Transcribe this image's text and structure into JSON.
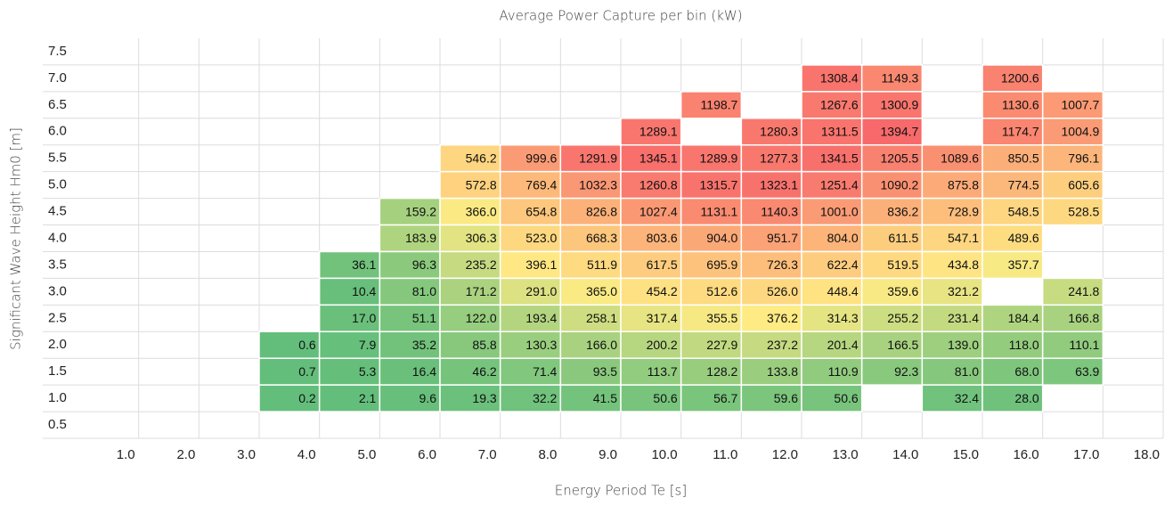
{
  "chart_data": {
    "type": "heatmap",
    "title": "Average Power Capture per bin (kW)",
    "x_label": "Energy Period Te [s]",
    "y_label": "Significant Wave Height Hm0 [m]",
    "x": [
      1,
      2,
      3,
      4,
      5,
      6,
      7,
      8,
      9,
      10,
      11,
      12,
      13,
      14,
      15,
      16,
      17
    ],
    "y": [
      7.0,
      6.5,
      6.0,
      5.5,
      5.0,
      4.5,
      4.0,
      3.5,
      3.0,
      2.5,
      2.0,
      1.5,
      1.0
    ],
    "values": [
      [
        null,
        null,
        null,
        null,
        null,
        null,
        null,
        null,
        null,
        null,
        null,
        null,
        1308.4,
        1149.3,
        null,
        1200.6,
        null
      ],
      [
        null,
        null,
        null,
        null,
        null,
        null,
        null,
        null,
        null,
        null,
        1198.7,
        null,
        1267.6,
        1300.9,
        null,
        1130.6,
        1007.7
      ],
      [
        null,
        null,
        null,
        null,
        null,
        null,
        null,
        null,
        null,
        1289.1,
        null,
        1280.3,
        1311.5,
        1394.7,
        null,
        1174.7,
        1004.9
      ],
      [
        null,
        null,
        null,
        null,
        null,
        null,
        546.2,
        999.6,
        1291.9,
        1345.1,
        1289.9,
        1277.3,
        1341.5,
        1205.5,
        1089.6,
        850.5,
        796.1
      ],
      [
        null,
        null,
        null,
        null,
        null,
        null,
        572.8,
        769.4,
        1032.3,
        1260.8,
        1315.7,
        1323.1,
        1251.4,
        1090.2,
        875.8,
        774.5,
        605.6
      ],
      [
        null,
        null,
        null,
        null,
        null,
        159.2,
        366.0,
        654.8,
        826.8,
        1027.4,
        1131.1,
        1140.3,
        1001.0,
        836.2,
        728.9,
        548.5,
        528.5
      ],
      [
        null,
        null,
        null,
        null,
        null,
        183.9,
        306.3,
        523.0,
        668.3,
        803.6,
        904.0,
        951.7,
        804.0,
        611.5,
        547.1,
        489.6,
        null
      ],
      [
        null,
        null,
        null,
        null,
        36.1,
        96.3,
        235.2,
        396.1,
        511.9,
        617.5,
        695.9,
        726.3,
        622.4,
        519.5,
        434.8,
        357.7,
        null
      ],
      [
        null,
        null,
        null,
        null,
        10.4,
        81.0,
        171.2,
        291.0,
        365.0,
        454.2,
        512.6,
        526.0,
        448.4,
        359.6,
        321.2,
        null,
        241.8
      ],
      [
        null,
        null,
        null,
        null,
        17.0,
        51.1,
        122.0,
        193.4,
        258.1,
        317.4,
        355.5,
        376.2,
        314.3,
        255.2,
        231.4,
        184.4,
        166.8
      ],
      [
        null,
        null,
        null,
        0.6,
        7.9,
        35.2,
        85.8,
        130.3,
        166.0,
        200.2,
        227.9,
        237.2,
        201.4,
        166.5,
        139.0,
        118.0,
        110.1
      ],
      [
        null,
        null,
        null,
        0.7,
        5.3,
        16.4,
        46.2,
        71.4,
        93.5,
        113.7,
        128.2,
        133.8,
        110.9,
        92.3,
        81.0,
        68.0,
        63.9
      ],
      [
        null,
        null,
        null,
        0.2,
        2.1,
        9.6,
        19.3,
        32.2,
        41.5,
        50.6,
        56.7,
        59.6,
        50.6,
        null,
        32.4,
        28.0,
        null
      ]
    ],
    "value_labels": [
      [
        null,
        null,
        null,
        null,
        null,
        null,
        null,
        null,
        null,
        null,
        null,
        null,
        "1308.4",
        "1149.3",
        null,
        "1200.6",
        null
      ],
      [
        null,
        null,
        null,
        null,
        null,
        null,
        null,
        null,
        null,
        null,
        "1198.7",
        null,
        "1267.6",
        "1300.9",
        null,
        "1130.6",
        "1007.7"
      ],
      [
        null,
        null,
        null,
        null,
        null,
        null,
        null,
        null,
        null,
        "1289.1",
        null,
        "1280.3",
        "1311.5",
        "1394.7",
        null,
        "1174.7",
        "1004.9"
      ],
      [
        null,
        null,
        null,
        null,
        null,
        null,
        "546.2",
        "999.6",
        "1291.9",
        "1345.1",
        "1289.9",
        "1277.3",
        "1341.5",
        "1205.5",
        "1089.6",
        "850.5",
        "796.1"
      ],
      [
        null,
        null,
        null,
        null,
        null,
        null,
        "572.8",
        "769.4",
        "1032.3",
        "1260.8",
        "1315.7",
        "1323.1",
        "1251.4",
        "1090.2",
        "875.8",
        "774.5",
        "605.6"
      ],
      [
        null,
        null,
        null,
        null,
        null,
        "159.2",
        "366.0",
        "654.8",
        "826.8",
        "1027.4",
        "1131.1",
        "1140.3",
        "1001.0",
        "836.2",
        "728.9",
        "548.5",
        "528.5"
      ],
      [
        null,
        null,
        null,
        null,
        null,
        "183.9",
        "306.3",
        "523.0",
        "668.3",
        "803.6",
        "904.0",
        "951.7",
        "804.0",
        "611.5",
        "547.1",
        "489.6",
        null
      ],
      [
        null,
        null,
        null,
        null,
        "36.1",
        "96.3",
        "235.2",
        "396.1",
        "511.9",
        "617.5",
        "695.9",
        "726.3",
        "622.4",
        "519.5",
        "434.8",
        "357.7",
        null
      ],
      [
        null,
        null,
        null,
        null,
        "10.4",
        "81.0",
        "171.2",
        "291.0",
        "365.0",
        "454.2",
        "512.6",
        "526.0",
        "448.4",
        "359.6",
        "321.2",
        null,
        "241.8"
      ],
      [
        null,
        null,
        null,
        null,
        "17.0",
        "51.1",
        "122.0",
        "193.4",
        "258.1",
        "317.4",
        "355.5",
        "376.2",
        "314.3",
        "255.2",
        "231.4",
        "184.4",
        "166.8"
      ],
      [
        null,
        null,
        null,
        "0.6",
        "7.9",
        "35.2",
        "85.8",
        "130.3",
        "166.0",
        "200.2",
        "227.9",
        "237.2",
        "201.4",
        "166.5",
        "139.0",
        "118.0",
        "110.1"
      ],
      [
        null,
        null,
        null,
        "0.7",
        "5.3",
        "16.4",
        "46.2",
        "71.4",
        "93.5",
        "113.7",
        "128.2",
        "133.8",
        "110.9",
        "92.3",
        "81.0",
        "68.0",
        "63.9"
      ],
      [
        null,
        null,
        null,
        "0.2",
        "2.1",
        "9.6",
        "19.3",
        "32.2",
        "41.5",
        "50.6",
        "56.7",
        "59.6",
        "50.6",
        null,
        "32.4",
        "28.0",
        null
      ]
    ],
    "colorscale": [
      "#63be7b",
      "#ffeb84",
      "#f8696b"
    ],
    "xlim": [
      0,
      18
    ],
    "ylim": [
      0.25,
      7.75
    ],
    "xticks": [
      {
        "value": 1,
        "label": "1.0"
      },
      {
        "value": 2,
        "label": "2.0"
      },
      {
        "value": 3,
        "label": "3.0"
      },
      {
        "value": 4,
        "label": "4.0"
      },
      {
        "value": 5,
        "label": "5.0"
      },
      {
        "value": 6,
        "label": "6.0"
      },
      {
        "value": 7,
        "label": "7.0"
      },
      {
        "value": 8,
        "label": "8.0"
      },
      {
        "value": 9,
        "label": "9.0"
      },
      {
        "value": 10,
        "label": "10.0"
      },
      {
        "value": 11,
        "label": "11.0"
      },
      {
        "value": 12,
        "label": "12.0"
      },
      {
        "value": 13,
        "label": "13.0"
      },
      {
        "value": 14,
        "label": "14.0"
      },
      {
        "value": 15,
        "label": "15.0"
      },
      {
        "value": 16,
        "label": "16.0"
      },
      {
        "value": 17,
        "label": "17.0"
      },
      {
        "value": 18,
        "label": "18.0"
      }
    ],
    "yticks": [
      {
        "value": 7.5,
        "label": "7.5"
      },
      {
        "value": 7,
        "label": "7.0"
      },
      {
        "value": 6.5,
        "label": "6.5"
      },
      {
        "value": 6,
        "label": "6.0"
      },
      {
        "value": 5.5,
        "label": "5.5"
      },
      {
        "value": 5,
        "label": "5.0"
      },
      {
        "value": 4.5,
        "label": "4.5"
      },
      {
        "value": 4,
        "label": "4.0"
      },
      {
        "value": 3.5,
        "label": "3.5"
      },
      {
        "value": 3,
        "label": "3.0"
      },
      {
        "value": 2.5,
        "label": "2.5"
      },
      {
        "value": 2,
        "label": "2.0"
      },
      {
        "value": 1.5,
        "label": "1.5"
      },
      {
        "value": 1,
        "label": "1.0"
      },
      {
        "value": 0.5,
        "label": "0.5"
      }
    ],
    "grid": true
  }
}
